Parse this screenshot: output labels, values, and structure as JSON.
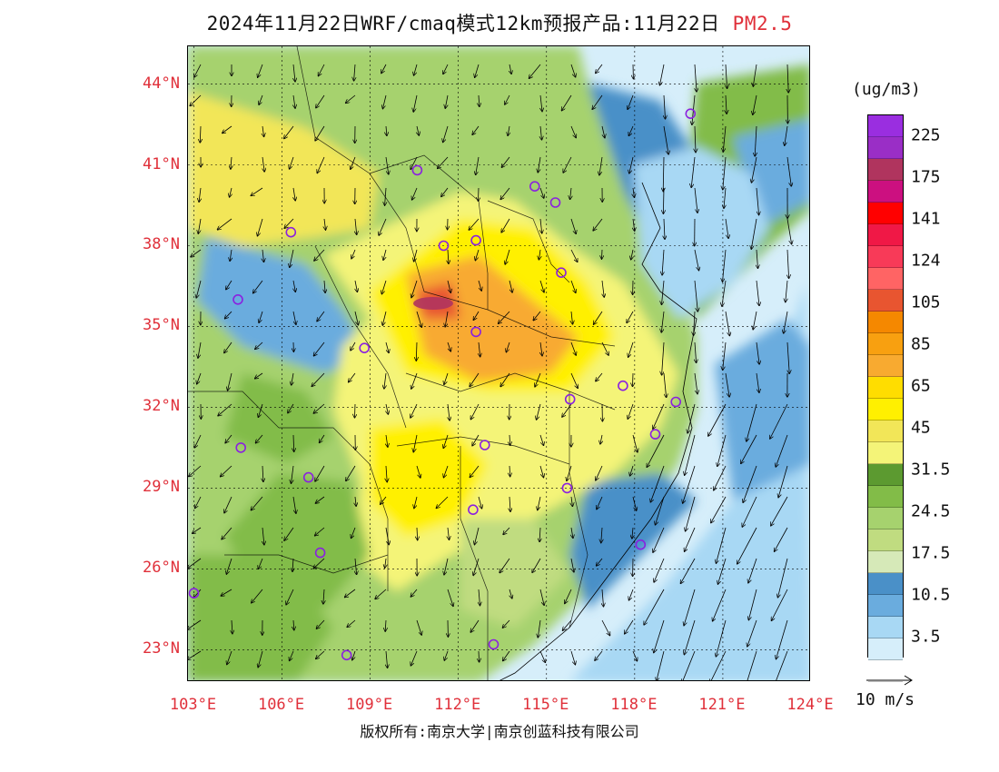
{
  "header": {
    "title": "2024年11月22日WRF/cmaq模式12km预报产品:11月22日",
    "pollutant": "PM2.5"
  },
  "map": {
    "lat_labels": [
      "44°N",
      "41°N",
      "38°N",
      "35°N",
      "32°N",
      "29°N",
      "26°N",
      "23°N"
    ],
    "lon_labels": [
      "103°E",
      "106°E",
      "109°E",
      "112°E",
      "115°E",
      "118°E",
      "121°E",
      "124°E"
    ],
    "lat_values": [
      44,
      41,
      38,
      35,
      32,
      29,
      26,
      23
    ],
    "lon_values": [
      103,
      106,
      109,
      112,
      115,
      118,
      121,
      124
    ],
    "extent": {
      "lon_min": 102.8,
      "lon_max": 124,
      "lat_min": 21.8,
      "lat_max": 45.4
    },
    "stations": [
      {
        "lon": 119.9,
        "lat": 42.9
      },
      {
        "lon": 110.6,
        "lat": 40.8
      },
      {
        "lon": 114.6,
        "lat": 40.2
      },
      {
        "lon": 115.3,
        "lat": 39.6
      },
      {
        "lon": 106.3,
        "lat": 38.5
      },
      {
        "lon": 111.5,
        "lat": 38.0
      },
      {
        "lon": 112.6,
        "lat": 38.2
      },
      {
        "lon": 115.5,
        "lat": 37.0
      },
      {
        "lon": 104.5,
        "lat": 36.0
      },
      {
        "lon": 112.6,
        "lat": 34.8
      },
      {
        "lon": 108.8,
        "lat": 34.2
      },
      {
        "lon": 117.6,
        "lat": 32.8
      },
      {
        "lon": 115.8,
        "lat": 32.3
      },
      {
        "lon": 119.4,
        "lat": 32.2
      },
      {
        "lon": 118.7,
        "lat": 31.0
      },
      {
        "lon": 104.6,
        "lat": 30.5
      },
      {
        "lon": 112.9,
        "lat": 30.6
      },
      {
        "lon": 106.9,
        "lat": 29.4
      },
      {
        "lon": 115.7,
        "lat": 29.0
      },
      {
        "lon": 112.5,
        "lat": 28.2
      },
      {
        "lon": 107.3,
        "lat": 26.6
      },
      {
        "lon": 118.2,
        "lat": 26.9
      },
      {
        "lon": 103.0,
        "lat": 25.1
      },
      {
        "lon": 108.2,
        "lat": 22.8
      },
      {
        "lon": 113.2,
        "lat": 23.2
      }
    ]
  },
  "colorbar": {
    "unit": "(ug/m3)",
    "colors": [
      "#9a2ee0",
      "#9a2ec6",
      "#b0345e",
      "#cc1080",
      "#ff0000",
      "#f01846",
      "#f83a58",
      "#ff6464",
      "#e85530",
      "#f58800",
      "#f8a010",
      "#f8aa30",
      "#ffdd00",
      "#fff000",
      "#f2e658",
      "#f4f478",
      "#5c9a30",
      "#82bc48",
      "#a6d26e",
      "#c0dc80",
      "#d6e9b8",
      "#4a90c8",
      "#6aacde",
      "#a8d8f4",
      "#d6eefa",
      "#ffffff"
    ],
    "labels": [
      {
        "text": "225",
        "index": 1
      },
      {
        "text": "175",
        "index": 3
      },
      {
        "text": "141",
        "index": 5
      },
      {
        "text": "124",
        "index": 7
      },
      {
        "text": "105",
        "index": 9
      },
      {
        "text": "85",
        "index": 11
      },
      {
        "text": "65",
        "index": 13
      },
      {
        "text": "45",
        "index": 15
      },
      {
        "text": "31.5",
        "index": 17
      },
      {
        "text": "24.5",
        "index": 19
      },
      {
        "text": "17.5",
        "index": 21
      },
      {
        "text": "10.5",
        "index": 23
      },
      {
        "text": "3.5",
        "index": 25
      }
    ]
  },
  "wind": {
    "reference_label": "10 m/s"
  },
  "footer": {
    "copyright": "版权所有:南京大学|南京创蓝科技有限公司"
  }
}
